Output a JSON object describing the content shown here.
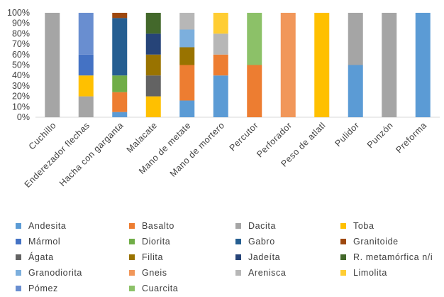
{
  "chart_data": {
    "type": "bar",
    "stacked": true,
    "percent": true,
    "categories": [
      "Cuchillo",
      "Enderezador flechas",
      "Hacha con garganta",
      "Malacate",
      "Mano de metate",
      "Mano de mortero",
      "Percutor",
      "Perforador",
      "Peso de atlatl",
      "Pulidor",
      "Punzón",
      "Preforma"
    ],
    "ylim": [
      0,
      100
    ],
    "yticks": [
      "0%",
      "10%",
      "20%",
      "30%",
      "40%",
      "50%",
      "60%",
      "70%",
      "80%",
      "90%",
      "100%"
    ],
    "grid": false,
    "legend_position": "bottom",
    "series": [
      {
        "name": "Andesita",
        "color": "#5B9BD5",
        "values": [
          0,
          0,
          5,
          0,
          16,
          40,
          0,
          0,
          0,
          50,
          0,
          100
        ]
      },
      {
        "name": "Basalto",
        "color": "#ED7D31",
        "values": [
          0,
          0,
          19,
          0,
          34,
          20,
          50,
          0,
          0,
          0,
          0,
          0
        ]
      },
      {
        "name": "Dacita",
        "color": "#A5A5A5",
        "values": [
          100,
          20,
          0,
          0,
          0,
          0,
          0,
          0,
          0,
          50,
          100,
          0
        ]
      },
      {
        "name": "Toba",
        "color": "#FFC000",
        "values": [
          0,
          20,
          0,
          20,
          0,
          0,
          0,
          0,
          100,
          0,
          0,
          0
        ]
      },
      {
        "name": "Mármol",
        "color": "#4472C4",
        "values": [
          0,
          20,
          0,
          0,
          0,
          0,
          0,
          0,
          0,
          0,
          0,
          0
        ]
      },
      {
        "name": "Diorita",
        "color": "#70AD47",
        "values": [
          0,
          0,
          16,
          0,
          0,
          0,
          0,
          0,
          0,
          0,
          0,
          0
        ]
      },
      {
        "name": "Gabro",
        "color": "#255E91",
        "values": [
          0,
          0,
          55,
          0,
          0,
          0,
          0,
          0,
          0,
          0,
          0,
          0
        ]
      },
      {
        "name": "Granitoide",
        "color": "#9E480E",
        "values": [
          0,
          0,
          5,
          0,
          0,
          0,
          0,
          0,
          0,
          0,
          0,
          0
        ]
      },
      {
        "name": "Ágata",
        "color": "#636363",
        "values": [
          0,
          0,
          0,
          20,
          0,
          0,
          0,
          0,
          0,
          0,
          0,
          0
        ]
      },
      {
        "name": "Filita",
        "color": "#997300",
        "values": [
          0,
          0,
          0,
          20,
          17,
          0,
          0,
          0,
          0,
          0,
          0,
          0
        ]
      },
      {
        "name": "Jadeíta",
        "color": "#264478",
        "values": [
          0,
          0,
          0,
          20,
          0,
          0,
          0,
          0,
          0,
          0,
          0,
          0
        ]
      },
      {
        "name": "R. metamórfica n/i",
        "color": "#43682B",
        "values": [
          0,
          0,
          0,
          20,
          0,
          0,
          0,
          0,
          0,
          0,
          0,
          0
        ]
      },
      {
        "name": "Granodiorita",
        "color": "#7CAFDD",
        "values": [
          0,
          0,
          0,
          0,
          17,
          0,
          0,
          0,
          0,
          0,
          0,
          0
        ]
      },
      {
        "name": "Gneis",
        "color": "#F1975A",
        "values": [
          0,
          0,
          0,
          0,
          0,
          0,
          0,
          100,
          0,
          0,
          0,
          0
        ]
      },
      {
        "name": "Arenisca",
        "color": "#B7B7B7",
        "values": [
          0,
          0,
          0,
          0,
          16,
          20,
          0,
          0,
          0,
          0,
          0,
          0
        ]
      },
      {
        "name": "Limolita",
        "color": "#FFCD33",
        "values": [
          0,
          0,
          0,
          0,
          0,
          20,
          0,
          0,
          0,
          0,
          0,
          0
        ]
      },
      {
        "name": "Pómez",
        "color": "#698ED0",
        "values": [
          0,
          40,
          0,
          0,
          0,
          0,
          0,
          0,
          0,
          0,
          0,
          0
        ]
      },
      {
        "name": "Cuarcita",
        "color": "#8CC168",
        "values": [
          0,
          0,
          0,
          0,
          0,
          0,
          50,
          0,
          0,
          0,
          0,
          0
        ]
      }
    ]
  }
}
